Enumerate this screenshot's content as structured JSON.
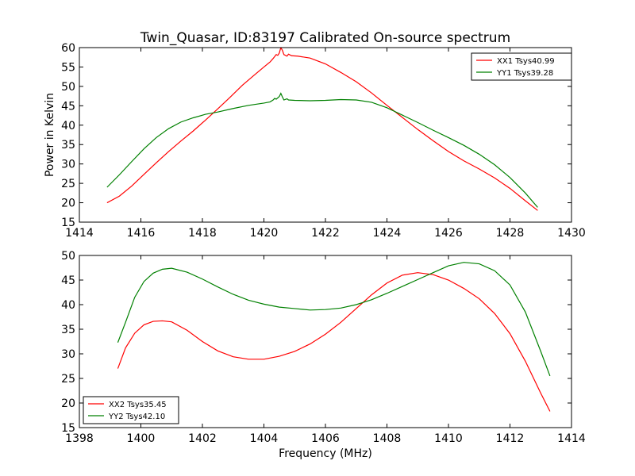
{
  "title": "Twin_Quasar, ID:83197 Calibrated On-source spectrum",
  "ylabel": "Power in Kelvin",
  "xlabel": "Frequency (MHz)",
  "colors": {
    "red": "#ff0000",
    "green": "#008000"
  },
  "chart_data": [
    {
      "type": "line",
      "xlim": [
        1414,
        1430
      ],
      "ylim": [
        15,
        60
      ],
      "xticks": [
        1414,
        1416,
        1418,
        1420,
        1422,
        1424,
        1426,
        1428,
        1430
      ],
      "yticks": [
        15,
        20,
        25,
        30,
        35,
        40,
        45,
        50,
        55,
        60
      ],
      "legend_position": "top-right",
      "series": [
        {
          "name": "XX1 Tsys40.99",
          "color": "#ff0000",
          "points": [
            [
              1414.9,
              20
            ],
            [
              1415.3,
              21.7
            ],
            [
              1415.7,
              24.3
            ],
            [
              1416.1,
              27.3
            ],
            [
              1416.5,
              30.3
            ],
            [
              1416.9,
              33.2
            ],
            [
              1417.3,
              35.9
            ],
            [
              1417.7,
              38.5
            ],
            [
              1418.1,
              41.3
            ],
            [
              1418.5,
              44.2
            ],
            [
              1418.9,
              47.2
            ],
            [
              1419.3,
              50.3
            ],
            [
              1419.7,
              53
            ],
            [
              1420.0,
              55
            ],
            [
              1420.2,
              56.3
            ],
            [
              1420.3,
              57.2
            ],
            [
              1420.4,
              58.2
            ],
            [
              1420.45,
              58
            ],
            [
              1420.5,
              58.6
            ],
            [
              1420.55,
              60
            ],
            [
              1420.6,
              59.3
            ],
            [
              1420.65,
              58.2
            ],
            [
              1420.75,
              57.8
            ],
            [
              1420.8,
              58.3
            ],
            [
              1420.9,
              57.9
            ],
            [
              1421.1,
              57.8
            ],
            [
              1421.5,
              57.3
            ],
            [
              1422,
              55.8
            ],
            [
              1422.5,
              53.6
            ],
            [
              1423,
              51.2
            ],
            [
              1423.5,
              48.3
            ],
            [
              1424,
              45.1
            ],
            [
              1424.5,
              42
            ],
            [
              1425,
              38.9
            ],
            [
              1425.5,
              36
            ],
            [
              1426,
              33.2
            ],
            [
              1426.5,
              30.8
            ],
            [
              1427,
              28.7
            ],
            [
              1427.5,
              26.4
            ],
            [
              1428,
              23.7
            ],
            [
              1428.5,
              20.5
            ],
            [
              1428.9,
              18
            ]
          ]
        },
        {
          "name": "YY1 Tsys39.28",
          "color": "#008000",
          "points": [
            [
              1414.9,
              24
            ],
            [
              1415.3,
              27.2
            ],
            [
              1415.7,
              30.6
            ],
            [
              1416.1,
              33.9
            ],
            [
              1416.5,
              36.8
            ],
            [
              1416.9,
              39.1
            ],
            [
              1417.3,
              40.8
            ],
            [
              1417.7,
              41.9
            ],
            [
              1418.1,
              42.8
            ],
            [
              1418.5,
              43.4
            ],
            [
              1419,
              44.3
            ],
            [
              1419.5,
              45.1
            ],
            [
              1420,
              45.7
            ],
            [
              1420.2,
              46
            ],
            [
              1420.3,
              46.5
            ],
            [
              1420.35,
              46.9
            ],
            [
              1420.4,
              46.7
            ],
            [
              1420.5,
              47.4
            ],
            [
              1420.55,
              48.2
            ],
            [
              1420.6,
              47.3
            ],
            [
              1420.65,
              46.5
            ],
            [
              1420.75,
              46.8
            ],
            [
              1420.8,
              46.5
            ],
            [
              1421,
              46.4
            ],
            [
              1421.5,
              46.3
            ],
            [
              1422,
              46.4
            ],
            [
              1422.5,
              46.6
            ],
            [
              1423,
              46.5
            ],
            [
              1423.5,
              45.9
            ],
            [
              1424,
              44.5
            ],
            [
              1424.5,
              42.6
            ],
            [
              1425,
              40.7
            ],
            [
              1425.5,
              38.7
            ],
            [
              1426,
              36.8
            ],
            [
              1426.5,
              34.8
            ],
            [
              1427,
              32.5
            ],
            [
              1427.5,
              29.8
            ],
            [
              1428,
              26.5
            ],
            [
              1428.5,
              22.5
            ],
            [
              1428.9,
              18.8
            ]
          ]
        }
      ]
    },
    {
      "type": "line",
      "xlim": [
        1398,
        1414
      ],
      "ylim": [
        15,
        50
      ],
      "xticks": [
        1398,
        1400,
        1402,
        1404,
        1406,
        1408,
        1410,
        1412,
        1414
      ],
      "yticks": [
        15,
        20,
        25,
        30,
        35,
        40,
        45,
        50
      ],
      "legend_position": "bottom-left",
      "series": [
        {
          "name": "XX2 Tsys35.45",
          "color": "#ff0000",
          "points": [
            [
              1399.25,
              27
            ],
            [
              1399.5,
              31.2
            ],
            [
              1399.8,
              34.2
            ],
            [
              1400.1,
              35.9
            ],
            [
              1400.4,
              36.6
            ],
            [
              1400.7,
              36.7
            ],
            [
              1401,
              36.5
            ],
            [
              1401.5,
              34.8
            ],
            [
              1402,
              32.5
            ],
            [
              1402.5,
              30.6
            ],
            [
              1403,
              29.4
            ],
            [
              1403.5,
              28.9
            ],
            [
              1404,
              28.9
            ],
            [
              1404.5,
              29.5
            ],
            [
              1405,
              30.5
            ],
            [
              1405.5,
              32
            ],
            [
              1406,
              34
            ],
            [
              1406.5,
              36.4
            ],
            [
              1407,
              39.2
            ],
            [
              1407.5,
              42
            ],
            [
              1408,
              44.4
            ],
            [
              1408.5,
              46
            ],
            [
              1409,
              46.5
            ],
            [
              1409.5,
              46.1
            ],
            [
              1410,
              45
            ],
            [
              1410.5,
              43.3
            ],
            [
              1411,
              41.2
            ],
            [
              1411.5,
              38.2
            ],
            [
              1412,
              34.1
            ],
            [
              1412.5,
              28.5
            ],
            [
              1413,
              22
            ],
            [
              1413.3,
              18.3
            ]
          ]
        },
        {
          "name": "YY2 Tsys42.10",
          "color": "#008000",
          "points": [
            [
              1399.25,
              32.3
            ],
            [
              1399.5,
              36.4
            ],
            [
              1399.8,
              41.5
            ],
            [
              1400.1,
              44.7
            ],
            [
              1400.4,
              46.4
            ],
            [
              1400.7,
              47.2
            ],
            [
              1401,
              47.4
            ],
            [
              1401.5,
              46.6
            ],
            [
              1402,
              45.2
            ],
            [
              1402.5,
              43.6
            ],
            [
              1403,
              42.1
            ],
            [
              1403.5,
              40.9
            ],
            [
              1404,
              40.1
            ],
            [
              1404.5,
              39.5
            ],
            [
              1405,
              39.2
            ],
            [
              1405.5,
              38.9
            ],
            [
              1406,
              39
            ],
            [
              1406.5,
              39.3
            ],
            [
              1407,
              40
            ],
            [
              1407.5,
              41
            ],
            [
              1408,
              42.3
            ],
            [
              1408.5,
              43.7
            ],
            [
              1409,
              45.1
            ],
            [
              1409.5,
              46.5
            ],
            [
              1410,
              47.9
            ],
            [
              1410.5,
              48.6
            ],
            [
              1411,
              48.3
            ],
            [
              1411.5,
              46.9
            ],
            [
              1412,
              44
            ],
            [
              1412.5,
              38.5
            ],
            [
              1413,
              30.5
            ],
            [
              1413.3,
              25.5
            ]
          ]
        }
      ]
    }
  ]
}
